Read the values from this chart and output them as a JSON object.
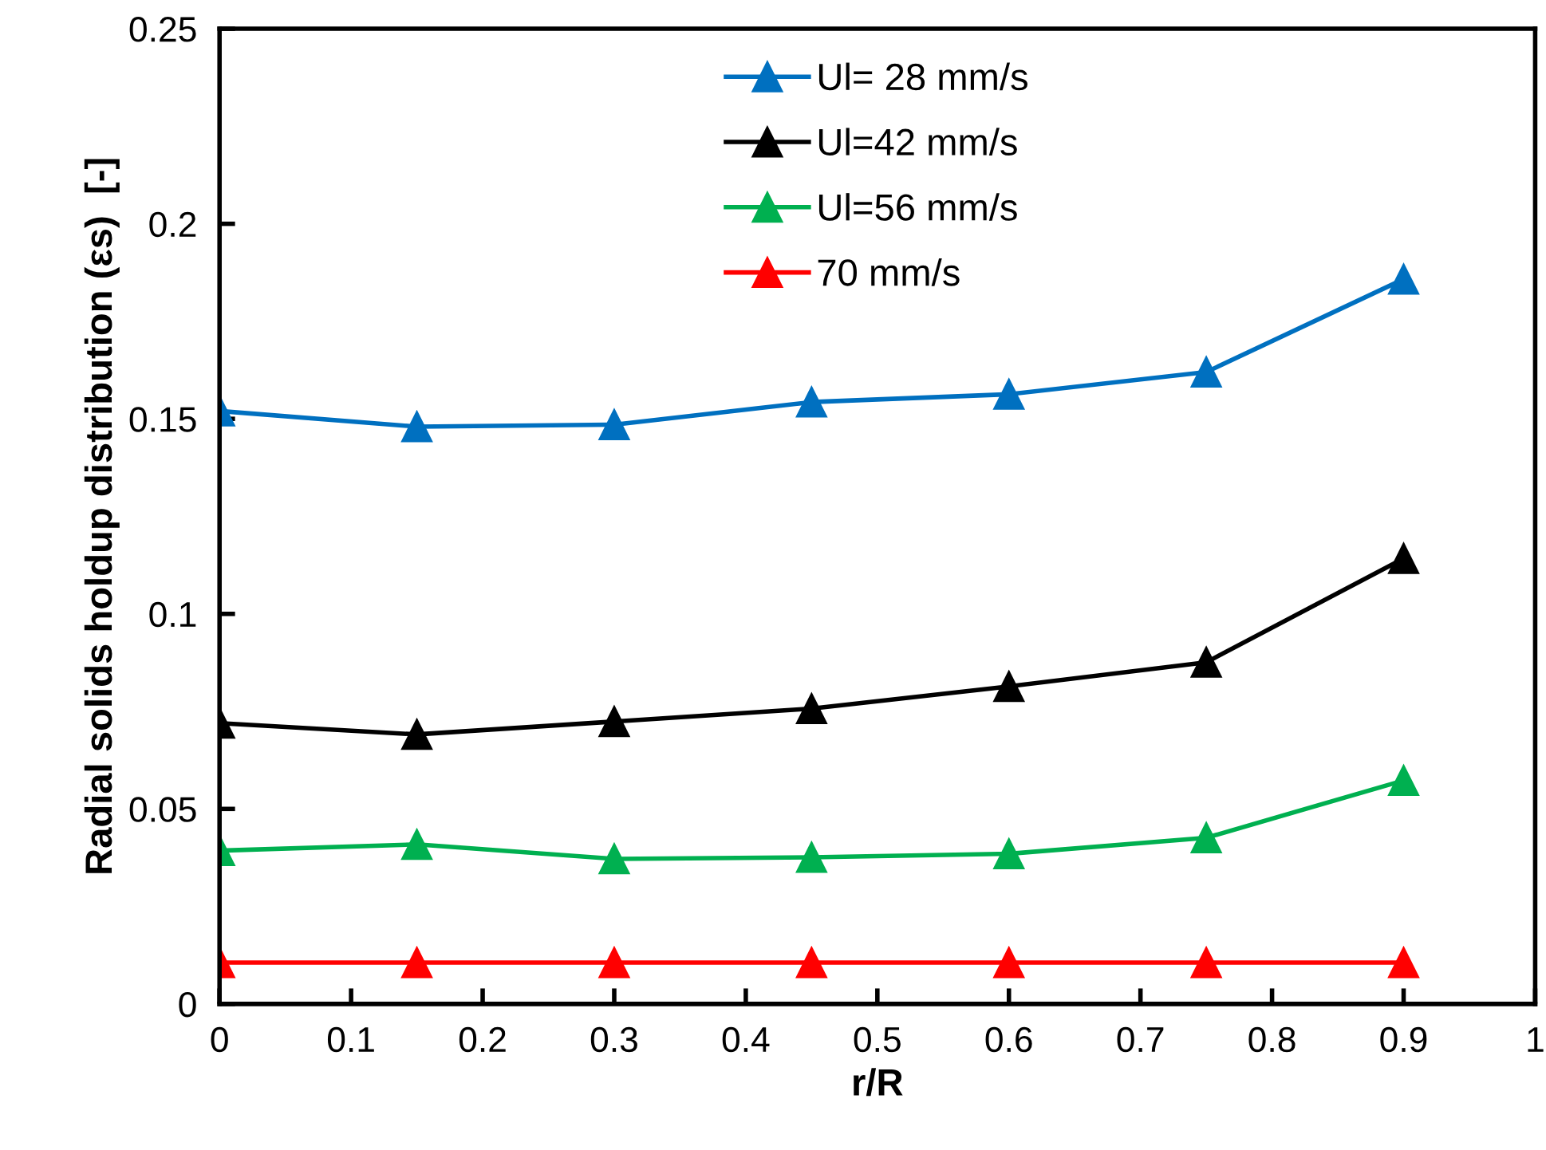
{
  "chart_data": {
    "type": "line",
    "xlabel": "r/R",
    "ylabel": "Radial solids holdup distribution (εs)  [-]",
    "x": [
      0,
      0.15,
      0.3,
      0.45,
      0.6,
      0.75,
      0.9
    ],
    "series": [
      {
        "name": "Ul= 28 mm/s",
        "color": "#0070c0",
        "values": [
          0.152,
          0.148,
          0.1485,
          0.1543,
          0.1563,
          0.162,
          0.1858
        ]
      },
      {
        "name": "Ul=42 mm/s",
        "color": "#000000",
        "values": [
          0.072,
          0.0691,
          0.0724,
          0.0757,
          0.0814,
          0.0876,
          0.1142
        ]
      },
      {
        "name": "Ul=56 mm/s",
        "color": "#00b050",
        "values": [
          0.0393,
          0.0409,
          0.0372,
          0.0376,
          0.0385,
          0.0426,
          0.0573
        ]
      },
      {
        "name": "70 mm/s",
        "color": "#ff0000",
        "values": [
          0.0106,
          0.0106,
          0.0106,
          0.0106,
          0.0106,
          0.0106,
          0.0106
        ]
      }
    ],
    "xlim": [
      0,
      1
    ],
    "xticks": [
      0,
      0.1,
      0.2,
      0.3,
      0.4,
      0.5,
      0.6,
      0.7,
      0.8,
      0.9,
      1
    ],
    "ylim": [
      0,
      0.25
    ],
    "yticks": [
      0,
      0.05,
      0.1,
      0.15,
      0.2,
      0.25
    ],
    "marker": "triangle",
    "line_style": "solid",
    "grid": false,
    "legend": "top"
  }
}
